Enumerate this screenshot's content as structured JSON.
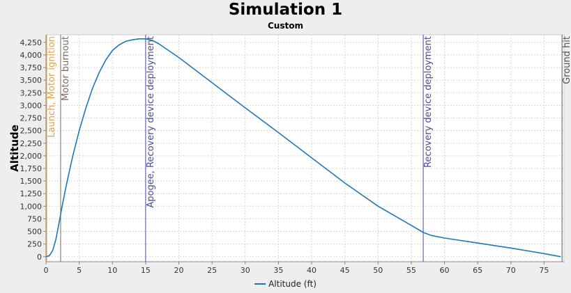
{
  "chart_data": {
    "type": "line",
    "title": "Simulation 1",
    "subtitle": "Custom",
    "xlabel": "",
    "ylabel": "Altitude",
    "xlim": [
      0,
      78
    ],
    "ylim": [
      -100,
      4400
    ],
    "xticks": [
      0,
      5,
      10,
      15,
      20,
      25,
      30,
      35,
      40,
      45,
      50,
      55,
      60,
      65,
      70,
      75
    ],
    "yticks": [
      0,
      250,
      500,
      750,
      1000,
      1250,
      1500,
      1750,
      2000,
      2250,
      2500,
      2750,
      3000,
      3250,
      3500,
      3750,
      4000,
      4250
    ],
    "xtick_labels": [
      "0",
      "5",
      "10",
      "15",
      "20",
      "25",
      "30",
      "35",
      "40",
      "45",
      "50",
      "55",
      "60",
      "65",
      "70",
      "75"
    ],
    "ytick_labels": [
      "0",
      "250",
      "500",
      "750",
      "1,000",
      "1,250",
      "1,500",
      "1,750",
      "2,000",
      "2,250",
      "2,500",
      "2,750",
      "3,000",
      "3,250",
      "3,500",
      "3,750",
      "4,000",
      "4,250"
    ],
    "grid": true,
    "legend_position": "bottom",
    "series": [
      {
        "name": "Altitude (ft)",
        "color": "#1f77b4",
        "x": [
          0,
          0.5,
          1,
          1.5,
          2,
          2.5,
          3,
          3.5,
          4,
          5,
          6,
          7,
          8,
          9,
          10,
          11,
          12,
          13,
          14,
          15,
          16,
          17,
          18,
          20,
          22,
          25,
          30,
          35,
          40,
          45,
          50,
          55,
          56.8,
          58,
          60,
          65,
          70,
          75,
          77.5
        ],
        "y": [
          0,
          20,
          120,
          350,
          700,
          1050,
          1380,
          1680,
          1980,
          2500,
          2950,
          3340,
          3650,
          3900,
          4090,
          4200,
          4270,
          4300,
          4320,
          4320,
          4290,
          4220,
          4130,
          3950,
          3750,
          3450,
          2950,
          2460,
          1960,
          1460,
          1000,
          620,
          480,
          420,
          370,
          270,
          170,
          60,
          0
        ]
      }
    ],
    "events": [
      {
        "x": 0.1,
        "label": "Launch, Motor ignition",
        "color": "#e8a040"
      },
      {
        "x": 2.2,
        "label": "Motor burnout",
        "color": "#7a6a5a"
      },
      {
        "x": 15.0,
        "label": "Apogee, Recovery device deployment",
        "color": "#4a4a9a"
      },
      {
        "x": 56.8,
        "label": "Recovery device deployment",
        "color": "#4a4a9a"
      },
      {
        "x": 77.7,
        "label": "Ground hit",
        "color": "#555555"
      }
    ]
  }
}
